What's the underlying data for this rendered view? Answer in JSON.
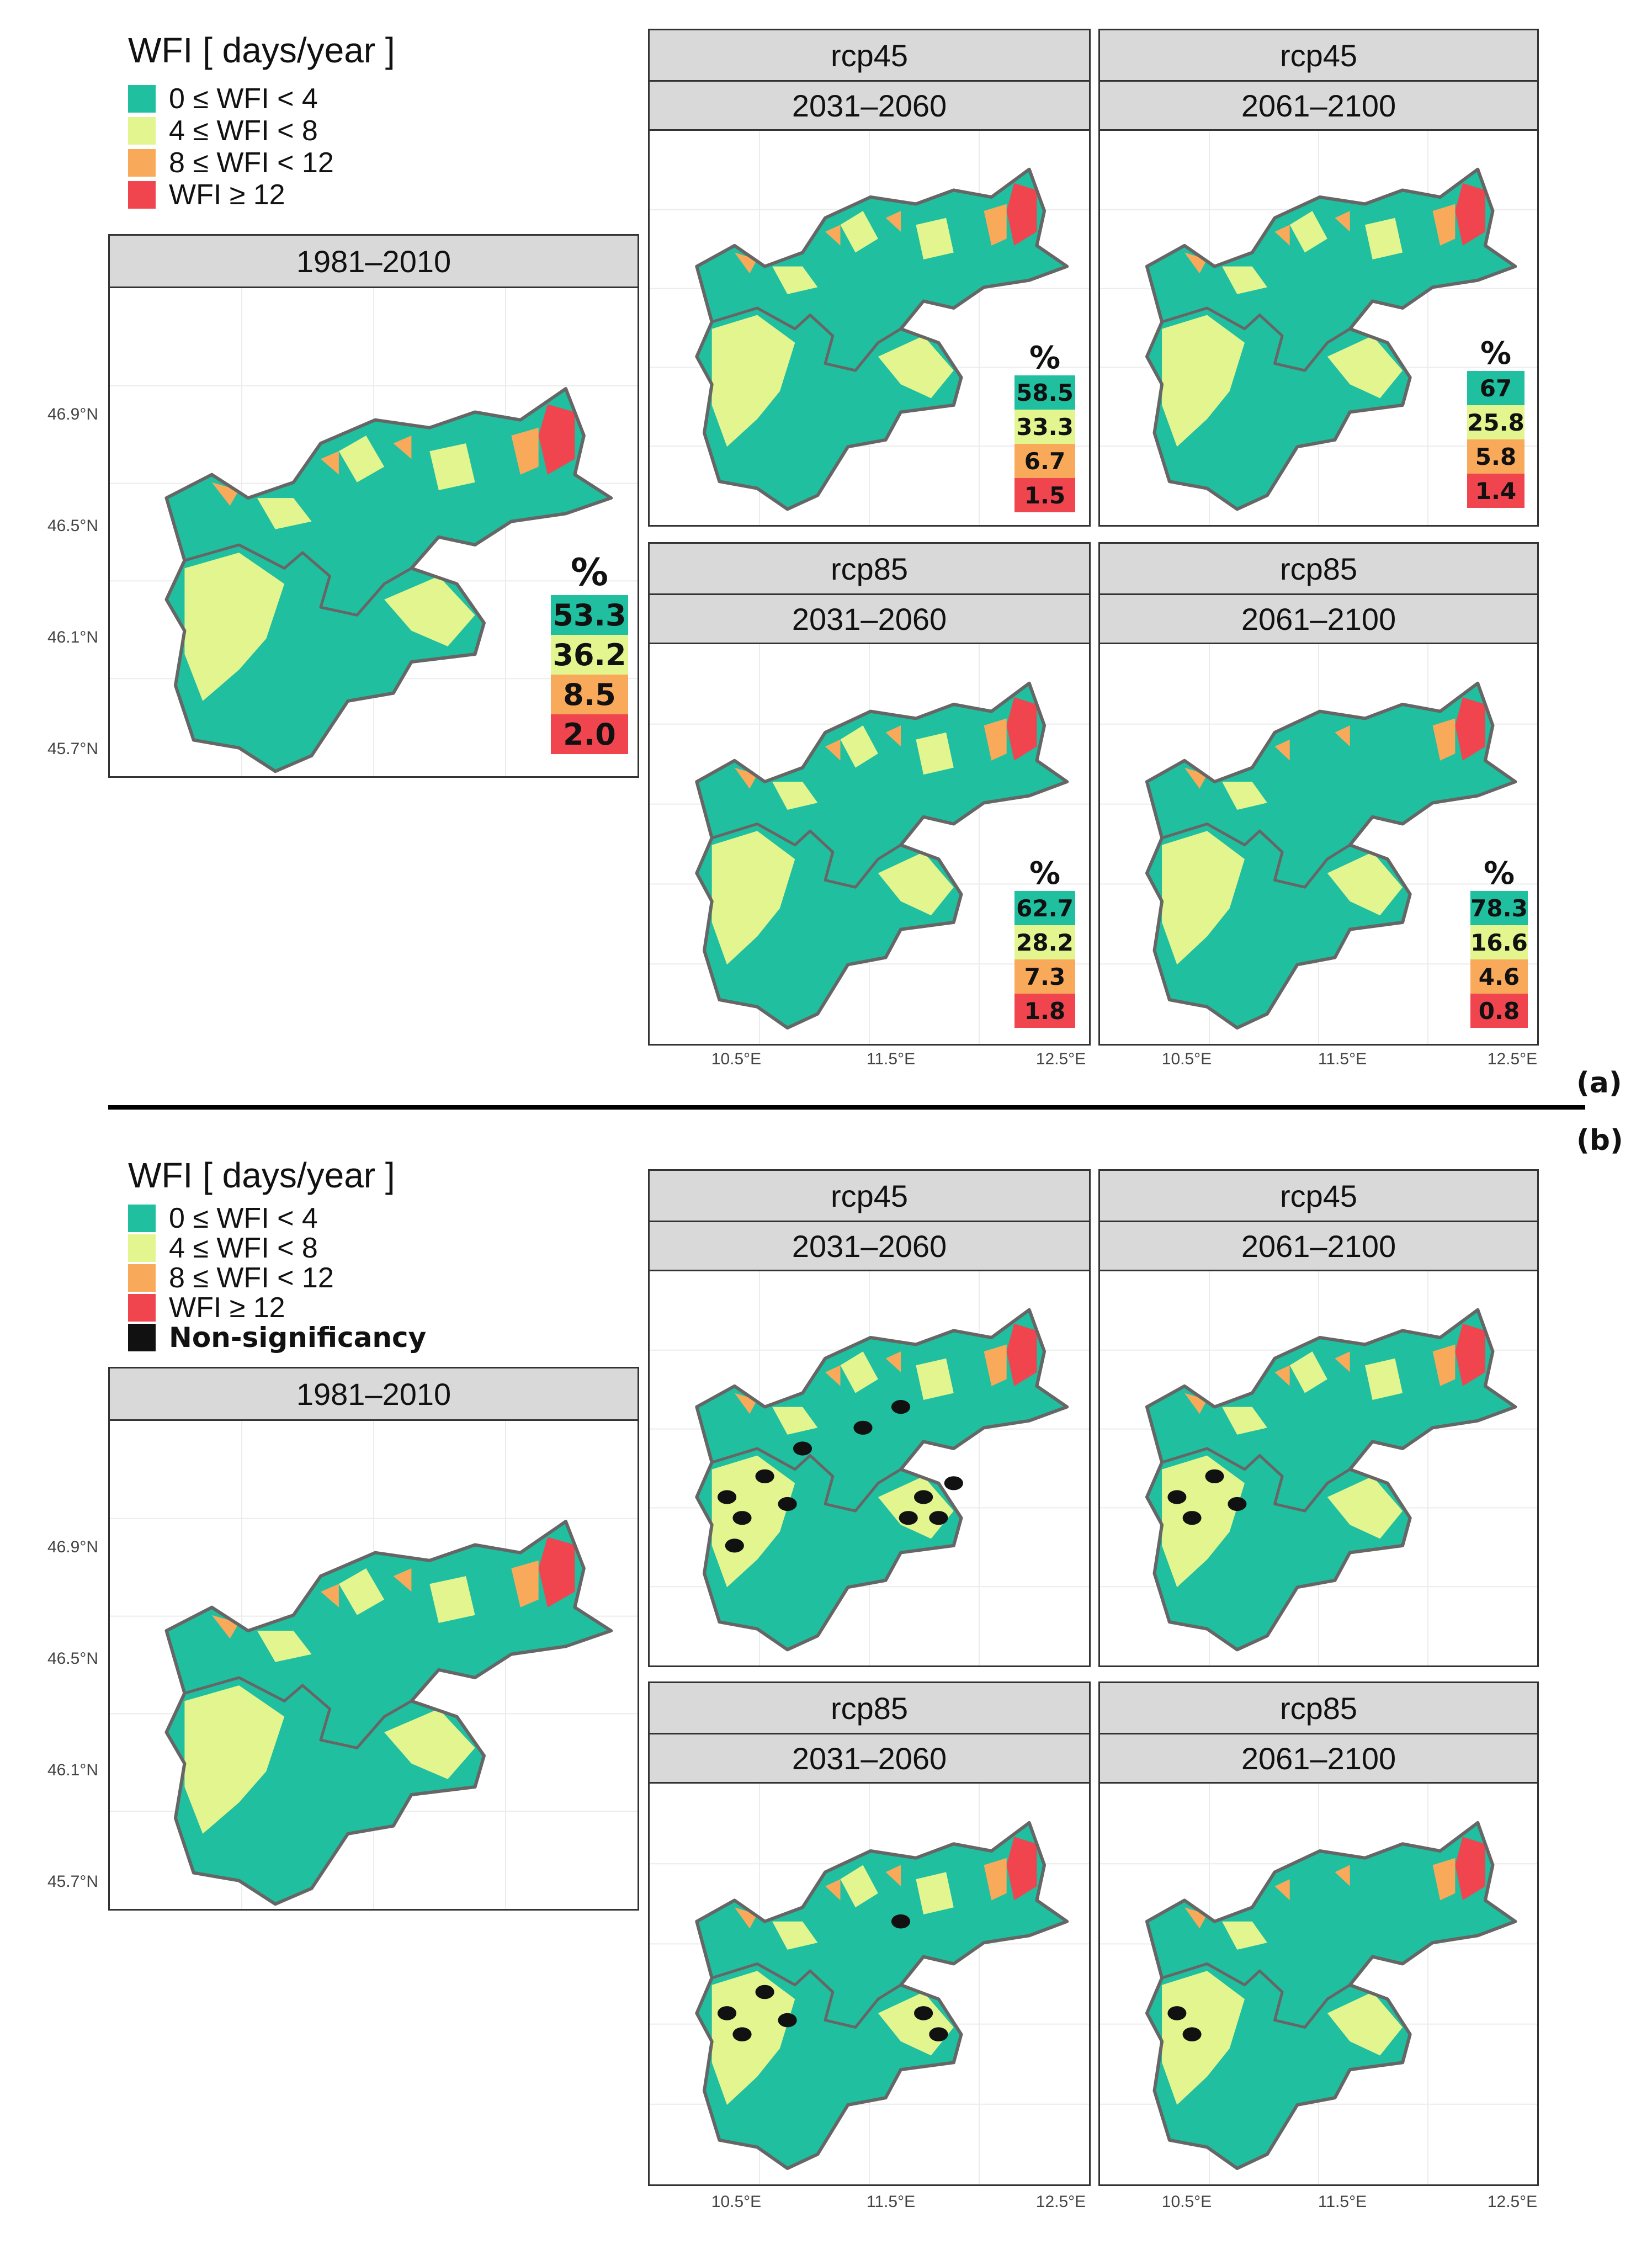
{
  "colors": {
    "class_0_4": "#1fbf9f",
    "class_4_8": "#e3f58f",
    "class_8_12": "#f9a95a",
    "class_12_plus": "#f0454f",
    "non_significant": "#111111",
    "border": "#666666",
    "strip_bg": "#d9d9d9"
  },
  "panel_letters": {
    "a": "(a)",
    "b": "(b)"
  },
  "section_a": {
    "legend": {
      "title": "WFI [ days/year ]",
      "items": [
        {
          "label": "0 ≤ WFI < 4",
          "color": "#1fbf9f"
        },
        {
          "label": "4 ≤ WFI < 8",
          "color": "#e3f58f"
        },
        {
          "label": "8 ≤ WFI < 12",
          "color": "#f9a95a"
        },
        {
          "label": "WFI ≥ 12",
          "color": "#f0454f"
        }
      ]
    },
    "panels": [
      {
        "id": "baseline",
        "scenario": "",
        "period": "1981–2010",
        "percent_symbol": "%",
        "percentages": [
          "53.3",
          "36.2",
          "8.5",
          "2.0"
        ]
      },
      {
        "id": "rcp45-mid",
        "scenario": "rcp45",
        "period": "2031–2060",
        "percent_symbol": "%",
        "percentages": [
          "58.5",
          "33.3",
          "6.7",
          "1.5"
        ]
      },
      {
        "id": "rcp45-late",
        "scenario": "rcp45",
        "period": "2061–2100",
        "percent_symbol": "%",
        "percentages": [
          "67",
          "25.8",
          "5.8",
          "1.4"
        ]
      },
      {
        "id": "rcp85-mid",
        "scenario": "rcp85",
        "period": "2031–2060",
        "percent_symbol": "%",
        "percentages": [
          "62.7",
          "28.2",
          "7.3",
          "1.8"
        ]
      },
      {
        "id": "rcp85-late",
        "scenario": "rcp85",
        "period": "2061–2100",
        "percent_symbol": "%",
        "percentages": [
          "78.3",
          "16.6",
          "4.6",
          "0.8"
        ]
      }
    ]
  },
  "section_b": {
    "legend": {
      "title": "WFI [ days/year ]",
      "items": [
        {
          "label": "0 ≤ WFI < 4",
          "color": "#1fbf9f"
        },
        {
          "label": "4 ≤ WFI < 8",
          "color": "#e3f58f"
        },
        {
          "label": "8 ≤ WFI < 12",
          "color": "#f9a95a"
        },
        {
          "label": "WFI ≥ 12",
          "color": "#f0454f"
        },
        {
          "label": "Non-significancy",
          "color": "#111111"
        }
      ]
    },
    "panels": [
      {
        "id": "baseline",
        "scenario": "",
        "period": "1981–2010",
        "non_significant_share": 0
      },
      {
        "id": "rcp45-mid",
        "scenario": "rcp45",
        "period": "2031–2060",
        "non_significant_share": 0.12
      },
      {
        "id": "rcp45-late",
        "scenario": "rcp45",
        "period": "2061–2100",
        "non_significant_share": 0.04
      },
      {
        "id": "rcp85-mid",
        "scenario": "rcp85",
        "period": "2031–2060",
        "non_significant_share": 0.07
      },
      {
        "id": "rcp85-late",
        "scenario": "rcp85",
        "period": "2061–2100",
        "non_significant_share": 0.02
      }
    ]
  },
  "axes": {
    "lat_ticks": [
      "46.9°N",
      "46.5°N",
      "46.1°N",
      "45.7°N"
    ],
    "lon_ticks": [
      "10.5°E",
      "11.5°E",
      "12.5°E"
    ]
  }
}
